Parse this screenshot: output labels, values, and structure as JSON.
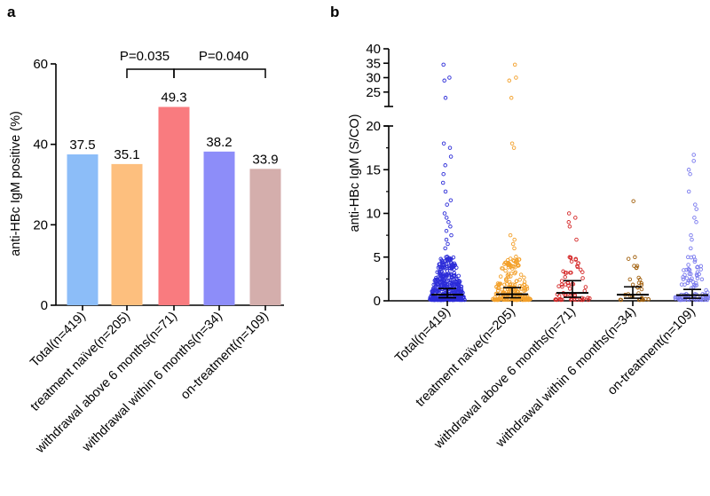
{
  "figure": {
    "panels": [
      "a",
      "b"
    ]
  },
  "colors": {
    "total": "#8cbdf8",
    "naive": "#fdbf7e",
    "above6": "#f97b7f",
    "within6": "#8d8df9",
    "ontreat": "#d4aeac",
    "axis": "#000000",
    "pt_total": "#2c2cd8",
    "pt_naive": "#f3a02a",
    "pt_above6": "#d52a2a",
    "pt_within6": "#a36210",
    "pt_ontreat": "#7a7aee"
  },
  "chart_data": [
    {
      "panel": "a",
      "type": "bar",
      "ylabel": "anti-HBc IgM positive (%)",
      "ylim": [
        0,
        60
      ],
      "yticks": [
        0,
        20,
        40,
        60
      ],
      "categories": [
        "Total(n=419)",
        "treatment naïve(n=205)",
        "withdrawal above 6 months(n=71)",
        "withdrawal within 6 months(n=34)",
        "on-treatment(n=109)"
      ],
      "values": [
        37.5,
        35.1,
        49.3,
        38.2,
        33.9
      ],
      "value_labels": [
        "37.5",
        "35.1",
        "49.3",
        "38.2",
        "33.9"
      ],
      "annotations": [
        {
          "text": "P=0.035",
          "from": 1,
          "to": 2
        },
        {
          "text": "P=0.040",
          "from": 2,
          "to": 4
        }
      ]
    },
    {
      "panel": "b",
      "type": "scatter",
      "ylabel": "anti-HBc IgM (S/CO)",
      "ylim_lower": [
        0,
        20
      ],
      "ylim_upper": [
        20,
        40
      ],
      "yticks": [
        0,
        5,
        10,
        15,
        20,
        25,
        30,
        35,
        40
      ],
      "categories": [
        "Total(n=419)",
        "treatment naïve(n=205)",
        "withdrawal above 6 months(n=71)",
        "withdrawal within 6 months(n=34)",
        "on-treatment(n=109)"
      ],
      "counts": [
        419,
        205,
        71,
        34,
        109
      ],
      "medians": [
        0.7,
        0.75,
        0.9,
        0.7,
        0.65
      ],
      "iqr_low": [
        0.35,
        0.35,
        0.4,
        0.3,
        0.3
      ],
      "iqr_high": [
        1.4,
        1.5,
        2.3,
        1.6,
        1.3
      ],
      "outliers": [
        [
          34.5,
          30,
          29,
          23,
          18,
          17.5,
          16.5,
          15.5,
          14.5,
          13.5,
          12.5,
          11.5,
          11,
          10,
          9.5,
          9,
          8.5,
          8,
          7.5,
          7,
          6.5,
          6
        ],
        [
          34.5,
          30,
          29,
          23,
          18,
          17.5,
          7.5,
          7,
          6.5,
          6
        ],
        [
          10,
          9.5,
          9,
          8.5,
          7,
          5,
          4.5
        ],
        [
          11.4,
          5,
          4.8,
          4
        ],
        [
          16.7,
          16,
          15,
          14.5,
          12.5,
          11,
          10.5,
          9.5,
          9,
          7.5,
          7,
          6,
          5
        ]
      ]
    }
  ]
}
